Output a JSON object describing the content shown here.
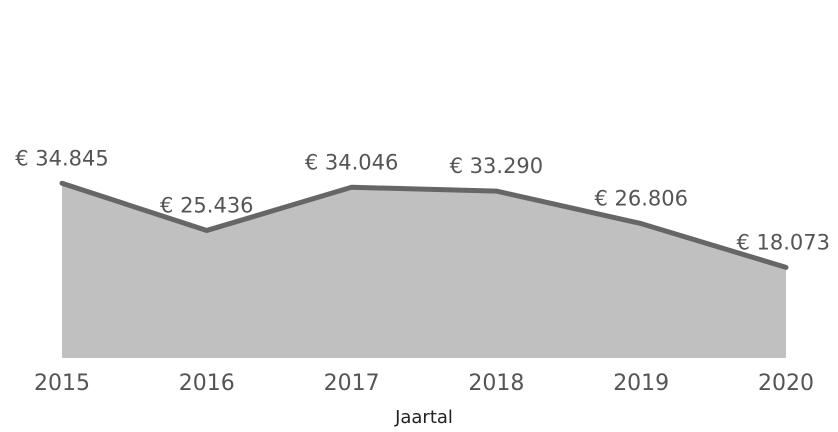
{
  "chart_data": {
    "type": "area",
    "categories": [
      "2015",
      "2016",
      "2017",
      "2018",
      "2019",
      "2020"
    ],
    "values": [
      34845,
      25436,
      34046,
      33290,
      26806,
      18073
    ],
    "value_labels": [
      "€ 34.845",
      "€ 25.436",
      "€ 34.046",
      "€ 33.290",
      "€ 26.806",
      "€ 18.073"
    ],
    "color": "#666666",
    "area_color": "#c0c0c0",
    "x_label": "Jaartal",
    "ylim": [
      0,
      70000
    ]
  }
}
